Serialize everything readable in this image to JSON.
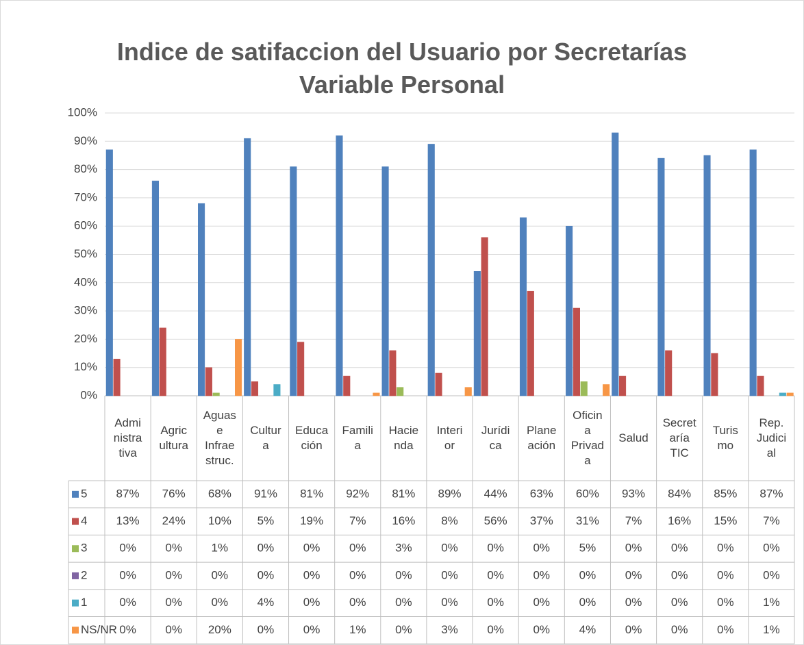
{
  "chart_data": {
    "type": "bar",
    "title": "Indice de satifaccion del Usuario por Secretarías\nVariable Personal",
    "categories": [
      "Admi\nnistra\ntiva",
      "Agric\nultura",
      "Aguas\ne\nInfrae\nstruc.",
      "Cultur\na",
      "Educa\nción",
      "Famili\na",
      "Hacie\nnda",
      "Interi\nor",
      "Jurídi\nca",
      "Plane\nación",
      "Oficin\na\nPrivad\na",
      "Salud",
      "Secret\naría\nTIC",
      "Turis\nmo",
      "Rep.\nJudici\nal"
    ],
    "series": [
      {
        "name": "5",
        "color": "#4f81bd",
        "values": [
          87,
          76,
          68,
          91,
          81,
          92,
          81,
          89,
          44,
          63,
          60,
          93,
          84,
          85,
          87
        ],
        "value_labels": [
          "87%",
          "76%",
          "68%",
          "91%",
          "81%",
          "92%",
          "81%",
          "89%",
          "44%",
          "63%",
          "60%",
          "93%",
          "84%",
          "85%",
          "87%"
        ]
      },
      {
        "name": "4",
        "color": "#c0504d",
        "values": [
          13,
          24,
          10,
          5,
          19,
          7,
          16,
          8,
          56,
          37,
          31,
          7,
          16,
          15,
          7
        ],
        "value_labels": [
          "13%",
          "24%",
          "10%",
          "5%",
          "19%",
          "7%",
          "16%",
          "8%",
          "56%",
          "37%",
          "31%",
          "7%",
          "16%",
          "15%",
          "7%"
        ]
      },
      {
        "name": "3",
        "color": "#9bbb59",
        "values": [
          0,
          0,
          1,
          0,
          0,
          0,
          3,
          0,
          0,
          0,
          5,
          0,
          0,
          0,
          0
        ],
        "value_labels": [
          "0%",
          "0%",
          "1%",
          "0%",
          "0%",
          "0%",
          "3%",
          "0%",
          "0%",
          "0%",
          "5%",
          "0%",
          "0%",
          "0%",
          "0%"
        ]
      },
      {
        "name": "2",
        "color": "#8064a2",
        "values": [
          0,
          0,
          0,
          0,
          0,
          0,
          0,
          0,
          0,
          0,
          0,
          0,
          0,
          0,
          0
        ],
        "value_labels": [
          "0%",
          "0%",
          "0%",
          "0%",
          "0%",
          "0%",
          "0%",
          "0%",
          "0%",
          "0%",
          "0%",
          "0%",
          "0%",
          "0%",
          "0%"
        ]
      },
      {
        "name": "1",
        "color": "#4bacc6",
        "values": [
          0,
          0,
          0,
          4,
          0,
          0,
          0,
          0,
          0,
          0,
          0,
          0,
          0,
          0,
          1
        ],
        "value_labels": [
          "0%",
          "0%",
          "0%",
          "4%",
          "0%",
          "0%",
          "0%",
          "0%",
          "0%",
          "0%",
          "0%",
          "0%",
          "0%",
          "0%",
          "1%"
        ]
      },
      {
        "name": "NS/NR",
        "color": "#f79646",
        "values": [
          0,
          0,
          20,
          0,
          0,
          1,
          0,
          3,
          0,
          0,
          4,
          0,
          0,
          0,
          1
        ],
        "value_labels": [
          "0%",
          "0%",
          "20%",
          "0%",
          "0%",
          "1%",
          "0%",
          "3%",
          "0%",
          "0%",
          "4%",
          "0%",
          "0%",
          "0%",
          "1%"
        ]
      }
    ],
    "ylim": [
      0,
      100
    ],
    "yticks": [
      {
        "value": 0,
        "label": "0%"
      },
      {
        "value": 10,
        "label": "10%"
      },
      {
        "value": 20,
        "label": "20%"
      },
      {
        "value": 30,
        "label": "30%"
      },
      {
        "value": 40,
        "label": "40%"
      },
      {
        "value": 50,
        "label": "50%"
      },
      {
        "value": 60,
        "label": "60%"
      },
      {
        "value": 70,
        "label": "70%"
      },
      {
        "value": 80,
        "label": "80%"
      },
      {
        "value": 90,
        "label": "90%"
      },
      {
        "value": 100,
        "label": "100%"
      }
    ],
    "grid": true
  }
}
